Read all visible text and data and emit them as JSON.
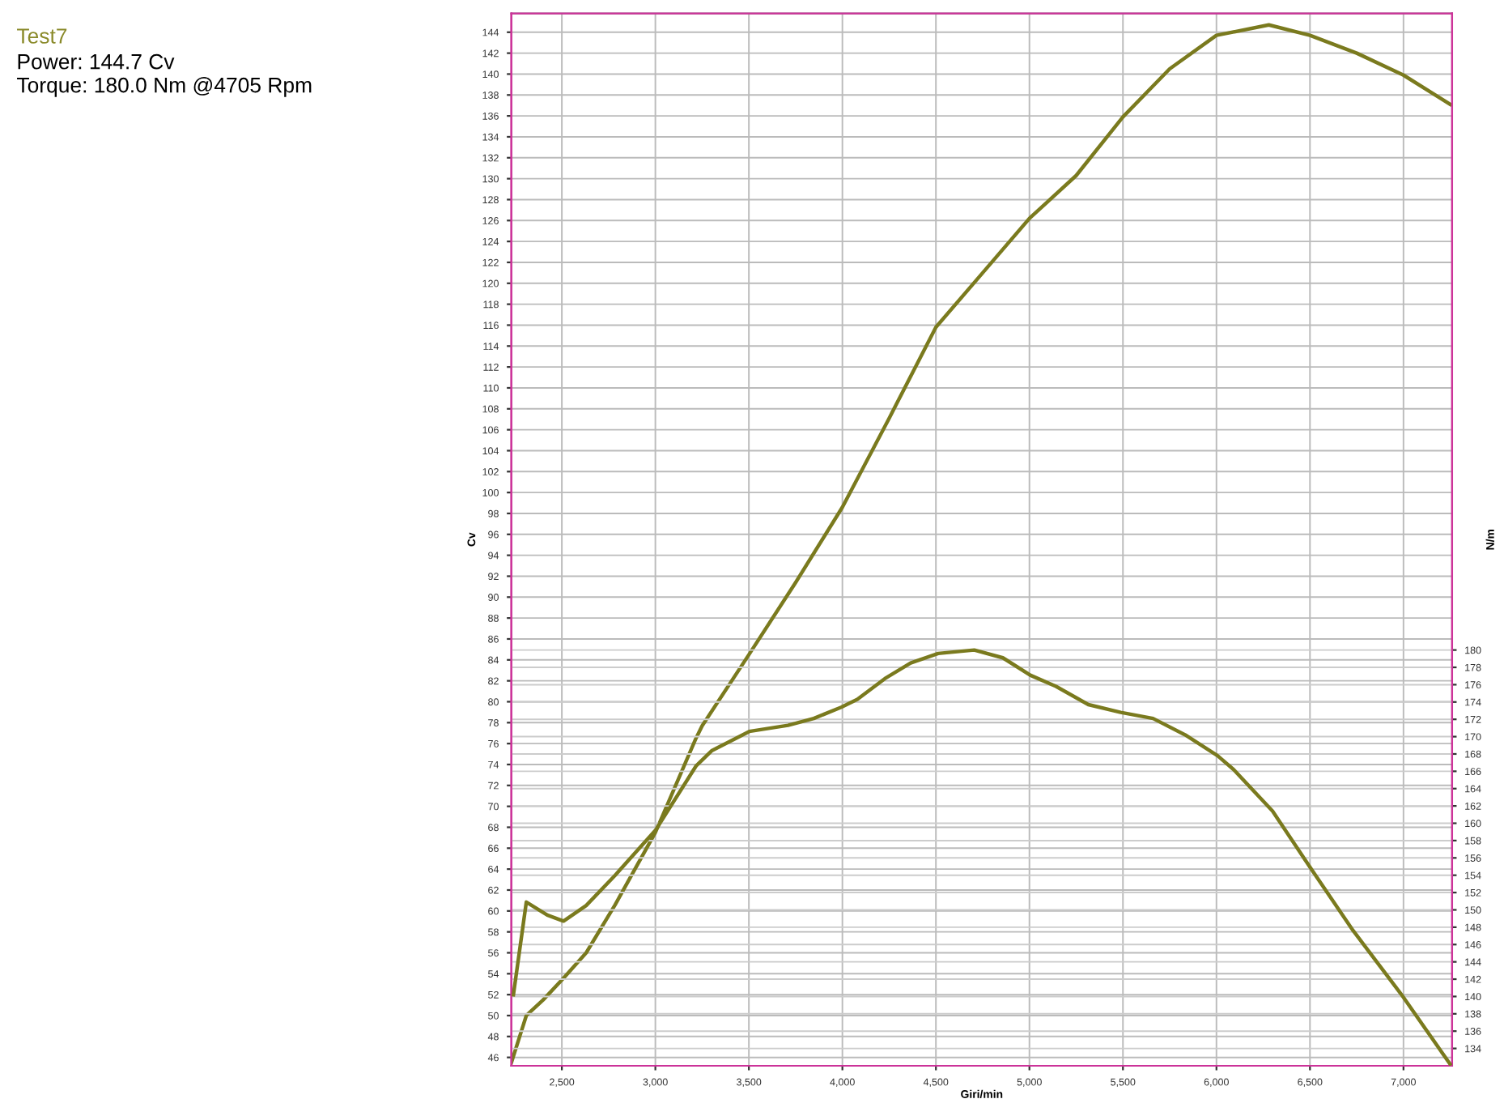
{
  "chart_data": {
    "type": "line",
    "title": "Test7",
    "annotations": [
      "Power: 144.7 Cv",
      "Torque: 180.0 Nm @4705 Rpm"
    ],
    "xlabel": "Giri/min",
    "ylabel": "Cv",
    "y2label": "N/m",
    "series": [
      {
        "color": "#7a7a1e",
        "x": [
          2230,
          2310,
          2400,
          2510,
          2630,
          2785,
          3000,
          3217,
          3250,
          3500,
          3750,
          4000,
          4250,
          4500,
          4750,
          5000,
          5250,
          5500,
          5750,
          6000,
          6280,
          6500,
          6750,
          7000,
          7250
        ],
        "values": [
          45.5,
          50.0,
          51.5,
          53.6,
          56.0,
          60.6,
          67.5,
          76.5,
          77.7,
          84.5,
          91.4,
          98.6,
          107.1,
          115.8,
          121.0,
          126.2,
          130.3,
          135.9,
          140.5,
          143.7,
          144.7,
          143.7,
          142.0,
          139.9,
          137.1
        ]
      },
      {
        "color": "#7a7a1e",
        "axis": "y2",
        "x": [
          2241,
          2310,
          2422,
          2509,
          2630,
          2785,
          3001,
          3217,
          3303,
          3502,
          3709,
          3847,
          3994,
          4080,
          4227,
          4365,
          4512,
          4705,
          4858,
          5004,
          5142,
          5315,
          5488,
          5661,
          5833,
          6006,
          6092,
          6300,
          6498,
          6731,
          6990,
          7249
        ],
        "values": [
          140.2,
          150.9,
          149.4,
          148.7,
          150.5,
          154.0,
          159.2,
          166.6,
          168.4,
          170.6,
          171.3,
          172.1,
          173.4,
          174.3,
          176.7,
          178.5,
          179.6,
          180.0,
          179.1,
          177.1,
          175.8,
          173.7,
          172.8,
          172.1,
          170.2,
          167.8,
          166.2,
          161.4,
          155.0,
          147.6,
          140.2,
          132.2
        ]
      }
    ],
    "xlim": [
      2230,
      7260
    ],
    "ylim": [
      45.2,
      145.8
    ],
    "y2lim": [
      132,
      253.5
    ],
    "xticks": [
      {
        "value": 2500,
        "label": "2,500"
      },
      {
        "value": 3000,
        "label": "3,000"
      },
      {
        "value": 3500,
        "label": "3,500"
      },
      {
        "value": 4000,
        "label": "4,000"
      },
      {
        "value": 4500,
        "label": "4,500"
      },
      {
        "value": 5000,
        "label": "5,000"
      },
      {
        "value": 5500,
        "label": "5,500"
      },
      {
        "value": 6000,
        "label": "6,000"
      },
      {
        "value": 6500,
        "label": "6,500"
      },
      {
        "value": 7000,
        "label": "7,000"
      }
    ],
    "yticks": [
      46,
      48,
      50,
      52,
      54,
      56,
      58,
      60,
      62,
      64,
      66,
      68,
      70,
      72,
      74,
      76,
      78,
      80,
      82,
      84,
      86,
      88,
      90,
      92,
      94,
      96,
      98,
      100,
      102,
      104,
      106,
      108,
      110,
      112,
      114,
      116,
      118,
      120,
      122,
      124,
      126,
      128,
      130,
      132,
      134,
      136,
      138,
      140,
      142,
      144
    ],
    "y2ticks": [
      134,
      136,
      138,
      140,
      142,
      144,
      146,
      148,
      150,
      152,
      154,
      156,
      158,
      160,
      162,
      164,
      166,
      168,
      170,
      172,
      174,
      176,
      178,
      180
    ],
    "grid": true,
    "marker": "none",
    "line_style": "solid"
  }
}
